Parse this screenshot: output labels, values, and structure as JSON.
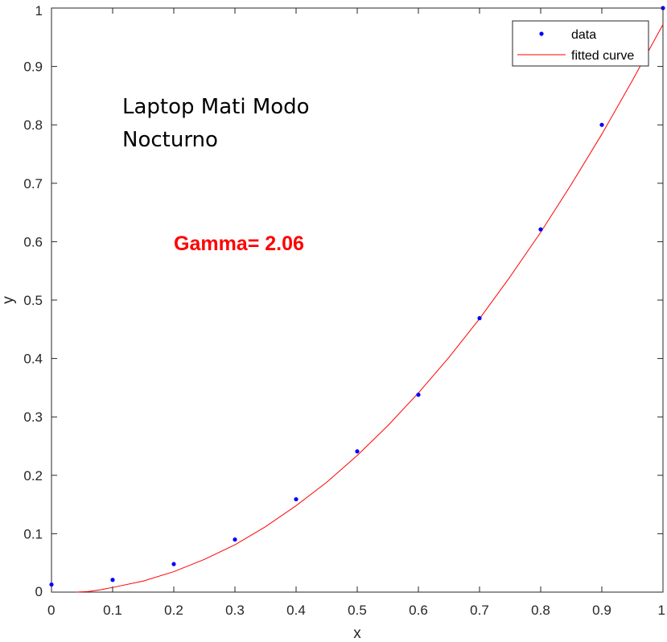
{
  "chart_data": {
    "type": "scatter",
    "xlabel": "x",
    "ylabel": "y",
    "xlim": [
      0,
      1
    ],
    "ylim": [
      0,
      1
    ],
    "xticks": [
      "0",
      "0.1",
      "0.2",
      "0.3",
      "0.4",
      "0.5",
      "0.6",
      "0.7",
      "0.8",
      "0.9",
      "1"
    ],
    "yticks": [
      "0",
      "0.1",
      "0.2",
      "0.3",
      "0.4",
      "0.5",
      "0.6",
      "0.7",
      "0.8",
      "0.9",
      "1"
    ],
    "grid": false,
    "legend_position": "top-right",
    "series": [
      {
        "name": "data",
        "kind": "markers",
        "color": "#0000ff",
        "x": [
          0,
          0.1,
          0.2,
          0.3,
          0.4,
          0.5,
          0.6,
          0.7,
          0.8,
          0.9,
          1.0
        ],
        "y": [
          0.013,
          0.021,
          0.048,
          0.09,
          0.159,
          0.241,
          0.338,
          0.469,
          0.621,
          0.8,
          1.0
        ]
      },
      {
        "name": "fitted curve",
        "kind": "line",
        "color": "#ff0000",
        "x": [
          0.04,
          0.06,
          0.08,
          0.1,
          0.15,
          0.2,
          0.25,
          0.3,
          0.35,
          0.4,
          0.45,
          0.5,
          0.55,
          0.6,
          0.65,
          0.7,
          0.75,
          0.8,
          0.85,
          0.9,
          0.95,
          1.0
        ],
        "y": [
          0.0,
          0.001,
          0.004,
          0.008,
          0.019,
          0.035,
          0.056,
          0.081,
          0.112,
          0.148,
          0.188,
          0.234,
          0.285,
          0.341,
          0.402,
          0.468,
          0.54,
          0.616,
          0.698,
          0.784,
          0.876,
          0.972
        ]
      }
    ],
    "annotations": [
      {
        "text": "Laptop Mati Modo\nNocturno",
        "x": 0.115,
        "y": 0.82
      },
      {
        "text": "Gamma= 2.06",
        "x": 0.2,
        "y": 0.59,
        "color": "#ff0000"
      }
    ],
    "annotation_title_lines": [
      "Laptop Mati Modo",
      "Nocturno"
    ],
    "annotation_gamma": "Gamma= 2.06"
  }
}
